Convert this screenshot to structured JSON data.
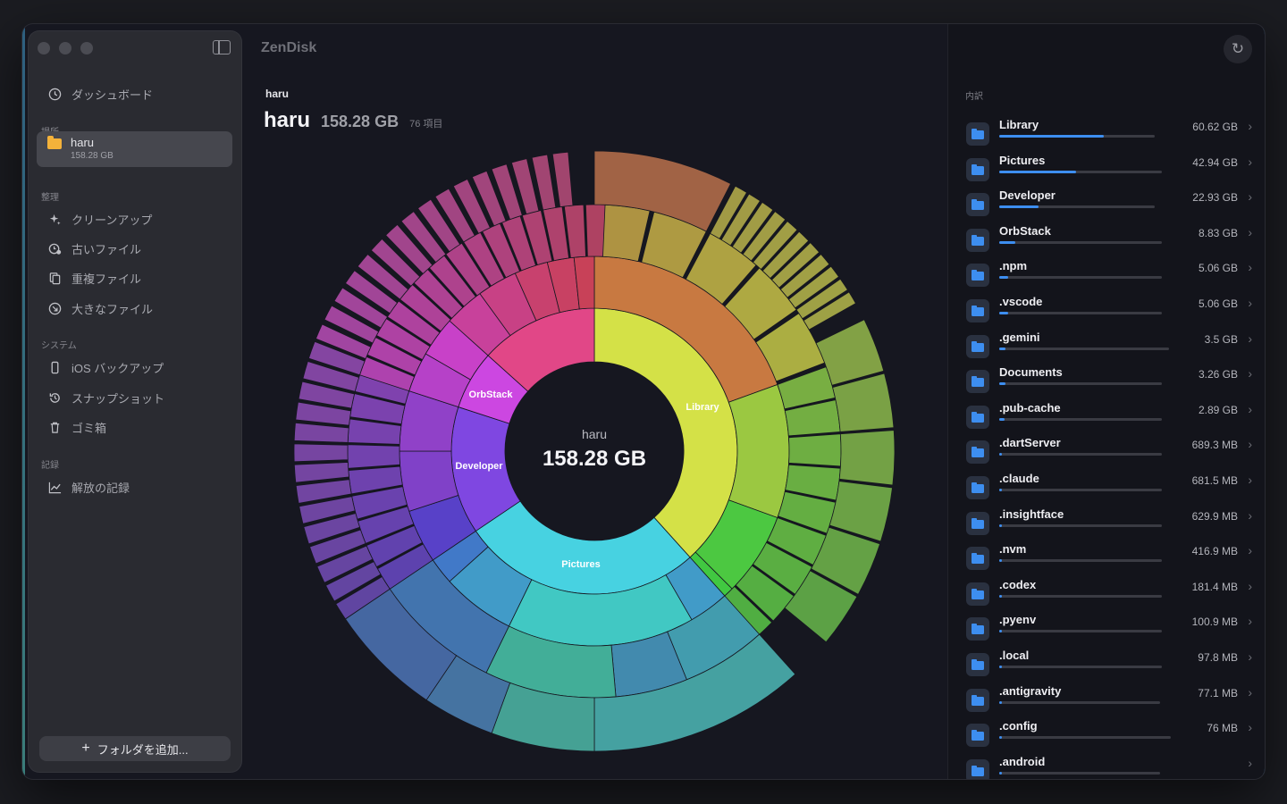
{
  "app": {
    "title": "ZenDisk"
  },
  "sidebar": {
    "dashboard_label": "ダッシュボード",
    "locations_header": "場所",
    "selected_location": {
      "name": "haru",
      "size": "158.28 GB"
    },
    "organize_header": "整理",
    "organize_items": [
      "クリーンアップ",
      "古いファイル",
      "重複ファイル",
      "大きなファイル"
    ],
    "system_header": "システム",
    "system_items": [
      "iOS バックアップ",
      "スナップショット",
      "ゴミ箱"
    ],
    "records_header": "記録",
    "records_items": [
      "解放の記録"
    ],
    "add_folder_label": "フォルダを追加..."
  },
  "main": {
    "breadcrumb": "haru",
    "title": "haru",
    "total_size": "158.28 GB",
    "item_count": "76 項目",
    "center_label": "haru",
    "center_size": "158.28 GB",
    "segment_labels": [
      "Library",
      "Pictures",
      "Developer",
      "OrbStack"
    ]
  },
  "panel": {
    "breakdown_label": "内訳",
    "items": [
      {
        "name": "Library",
        "size": "60.62 GB",
        "fraction": 0.383
      },
      {
        "name": "Pictures",
        "size": "42.94 GB",
        "fraction": 0.271
      },
      {
        "name": "Developer",
        "size": "22.93 GB",
        "fraction": 0.145
      },
      {
        "name": "OrbStack",
        "size": "8.83 GB",
        "fraction": 0.056
      },
      {
        "name": ".npm",
        "size": "5.06 GB",
        "fraction": 0.032
      },
      {
        "name": ".vscode",
        "size": "5.06 GB",
        "fraction": 0.032
      },
      {
        "name": ".gemini",
        "size": "3.5 GB",
        "fraction": 0.022
      },
      {
        "name": "Documents",
        "size": "3.26 GB",
        "fraction": 0.021
      },
      {
        "name": ".pub-cache",
        "size": "2.89 GB",
        "fraction": 0.018
      },
      {
        "name": ".dartServer",
        "size": "689.3 MB",
        "fraction": 0.005
      },
      {
        "name": ".claude",
        "size": "681.5 MB",
        "fraction": 0.005
      },
      {
        "name": ".insightface",
        "size": "629.9 MB",
        "fraction": 0.004
      },
      {
        "name": ".nvm",
        "size": "416.9 MB",
        "fraction": 0.003
      },
      {
        "name": ".codex",
        "size": "181.4 MB",
        "fraction": 0.001
      },
      {
        "name": ".pyenv",
        "size": "100.9 MB",
        "fraction": 0.001
      },
      {
        "name": ".local",
        "size": "97.8 MB",
        "fraction": 0.001
      },
      {
        "name": ".antigravity",
        "size": "77.1 MB",
        "fraction": 0.0005
      },
      {
        "name": ".config",
        "size": "76 MB",
        "fraction": 0.0005
      },
      {
        "name": ".android",
        "size": "",
        "fraction": 0.0005
      }
    ]
  },
  "colors": {
    "accent": "#3d8ef0",
    "library": "#d6e84a",
    "pictures": "#4fdcec",
    "developer": "#8a4fe0",
    "orbstack": "#e060e6"
  }
}
